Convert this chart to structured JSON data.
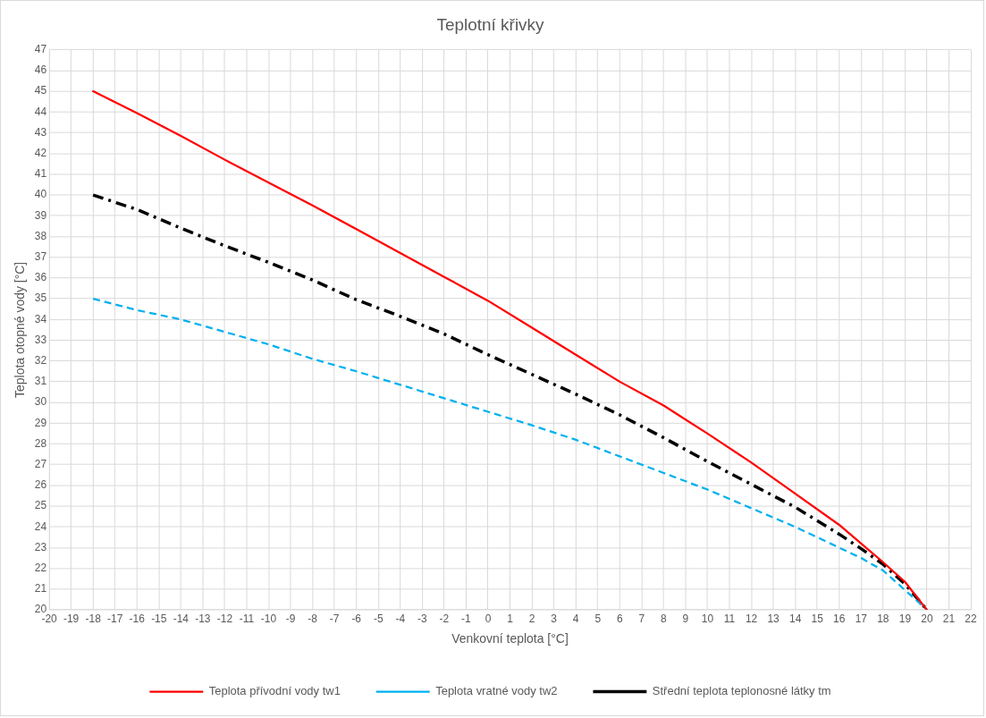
{
  "chart_data": {
    "type": "line",
    "title": "Teplotní křivky",
    "xlabel": "Venkovní teplota [°C]",
    "ylabel": "Teplota otopné vody [°C]",
    "x": [
      -18,
      -16,
      -14,
      -12,
      -10,
      -8,
      -6,
      -4,
      -2,
      0,
      2,
      4,
      6,
      8,
      10,
      12,
      14,
      16,
      17,
      18,
      19,
      20
    ],
    "series": [
      {
        "name": "Teplota přívodní vody tw1",
        "color": "#ff0000",
        "line_style": "solid",
        "values": [
          45,
          43.95,
          42.85,
          41.7,
          40.6,
          39.5,
          38.35,
          37.2,
          36.05,
          34.9,
          33.6,
          32.3,
          31.0,
          29.85,
          28.5,
          27.1,
          25.6,
          24.1,
          23.2,
          22.3,
          21.35,
          20
        ]
      },
      {
        "name": "Teplota vratné vody tw2",
        "color": "#00b0f0",
        "line_style": "dashed",
        "values": [
          35,
          34.45,
          34.0,
          33.4,
          32.8,
          32.1,
          31.5,
          30.85,
          30.2,
          29.55,
          28.9,
          28.2,
          27.4,
          26.6,
          25.8,
          24.9,
          24.0,
          23.0,
          22.5,
          21.9,
          20.95,
          20
        ]
      },
      {
        "name": "Střední teplota teplonosné látky tm",
        "color": "#000000",
        "line_style": "dashdot",
        "values": [
          40,
          39.3,
          38.4,
          37.55,
          36.75,
          35.9,
          34.95,
          34.15,
          33.3,
          32.3,
          31.35,
          30.4,
          29.4,
          28.3,
          27.15,
          26.05,
          24.95,
          23.65,
          22.95,
          22.2,
          21.25,
          20
        ]
      }
    ],
    "xlim": [
      -20,
      22
    ],
    "xticks": [
      -20,
      -19,
      -18,
      -17,
      -16,
      -15,
      -14,
      -13,
      -12,
      -11,
      -10,
      -9,
      -8,
      -7,
      -6,
      -5,
      -4,
      -3,
      -2,
      -1,
      0,
      1,
      2,
      3,
      4,
      5,
      6,
      7,
      8,
      9,
      10,
      11,
      12,
      13,
      14,
      15,
      16,
      17,
      18,
      19,
      20,
      21,
      22
    ],
    "ylim": [
      20,
      47
    ],
    "yticks": [
      20,
      21,
      22,
      23,
      24,
      25,
      26,
      27,
      28,
      29,
      30,
      31,
      32,
      33,
      34,
      35,
      36,
      37,
      38,
      39,
      40,
      41,
      42,
      43,
      44,
      45,
      46,
      47
    ],
    "grid": true,
    "legend": "bottom",
    "marker": "none"
  }
}
